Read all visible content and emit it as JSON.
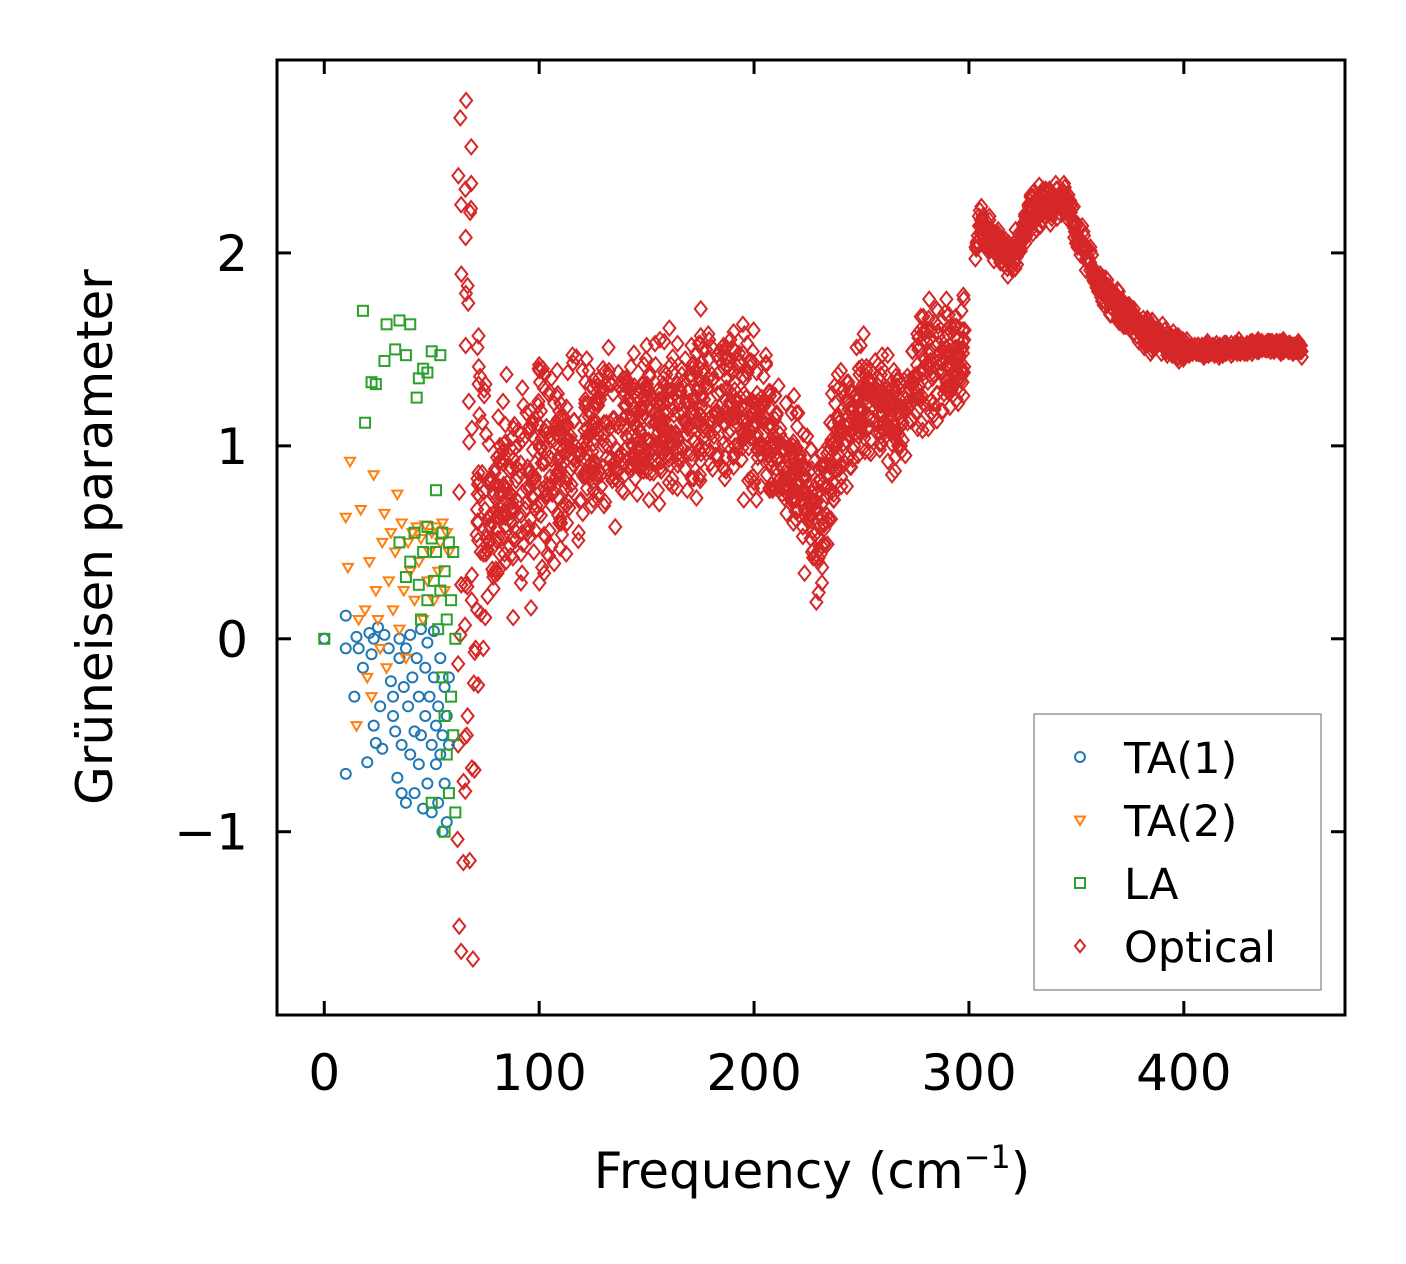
{
  "chart_data": {
    "type": "scatter",
    "title": "",
    "xlabel": "Frequency (cm",
    "xlabel_sup": "−1",
    "xlabel_end": ")",
    "ylabel": "Grüneisen parameter",
    "xlim": [
      -22,
      475
    ],
    "ylim": [
      -1.95,
      3.0
    ],
    "xticks": [
      0,
      100,
      200,
      300,
      400
    ],
    "xtick_labels": [
      "0",
      "100",
      "200",
      "300",
      "400"
    ],
    "yticks": [
      -1,
      0,
      1,
      2
    ],
    "ytick_labels": [
      "−1",
      "0",
      "1",
      "2"
    ],
    "legend_position": "lower-right",
    "series": [
      {
        "name": "TA(1)",
        "marker": "circle",
        "color": "#1f77b4",
        "points": [
          [
            0,
            0
          ],
          [
            10,
            0.12
          ],
          [
            10,
            -0.05
          ],
          [
            10,
            -0.7
          ],
          [
            14,
            -0.3
          ],
          [
            15,
            0.01
          ],
          [
            16,
            -0.05
          ],
          [
            18,
            -0.15
          ],
          [
            20,
            -0.64
          ],
          [
            21,
            0.03
          ],
          [
            22,
            -0.08
          ],
          [
            23,
            0
          ],
          [
            23,
            -0.45
          ],
          [
            24,
            -0.54
          ],
          [
            25,
            0.06
          ],
          [
            26,
            -0.35
          ],
          [
            27,
            -0.57
          ],
          [
            28,
            0.02
          ],
          [
            30,
            -0.05
          ],
          [
            31,
            -0.22
          ],
          [
            32,
            -0.3
          ],
          [
            32,
            -0.4
          ],
          [
            33,
            -0.48
          ],
          [
            34,
            -0.72
          ],
          [
            35,
            -0.1
          ],
          [
            35,
            0
          ],
          [
            36,
            -0.8
          ],
          [
            36,
            -0.55
          ],
          [
            37,
            -0.25
          ],
          [
            38,
            -0.05
          ],
          [
            38,
            -0.85
          ],
          [
            39,
            -0.35
          ],
          [
            40,
            0.02
          ],
          [
            40,
            -0.6
          ],
          [
            41,
            -0.2
          ],
          [
            42,
            -0.48
          ],
          [
            42,
            -0.8
          ],
          [
            43,
            -0.1
          ],
          [
            44,
            -0.3
          ],
          [
            44,
            -0.65
          ],
          [
            45,
            0.05
          ],
          [
            45,
            -0.5
          ],
          [
            46,
            -0.88
          ],
          [
            47,
            -0.15
          ],
          [
            47,
            -0.4
          ],
          [
            48,
            -0.02
          ],
          [
            48,
            -0.75
          ],
          [
            49,
            -0.3
          ],
          [
            50,
            -0.55
          ],
          [
            50,
            -0.9
          ],
          [
            51,
            -0.2
          ],
          [
            51,
            0.04
          ],
          [
            52,
            -0.45
          ],
          [
            52,
            -0.65
          ],
          [
            53,
            -0.35
          ],
          [
            53,
            -0.85
          ],
          [
            54,
            -0.1
          ],
          [
            54,
            -0.6
          ],
          [
            55,
            -0.5
          ],
          [
            55,
            -1.0
          ],
          [
            56,
            -0.25
          ],
          [
            56,
            -0.75
          ],
          [
            57,
            -0.4
          ],
          [
            57,
            -0.95
          ],
          [
            58,
            -0.2
          ],
          [
            58,
            -0.55
          ]
        ]
      },
      {
        "name": "TA(2)",
        "marker": "triangle-down",
        "color": "#ff7f0e",
        "points": [
          [
            10,
            0.63
          ],
          [
            11,
            0.37
          ],
          [
            12,
            0.92
          ],
          [
            15,
            -0.45
          ],
          [
            16,
            0.1
          ],
          [
            17,
            0.67
          ],
          [
            19,
            0.15
          ],
          [
            20,
            -0.2
          ],
          [
            21,
            0.4
          ],
          [
            22,
            -0.3
          ],
          [
            23,
            0.85
          ],
          [
            24,
            0.25
          ],
          [
            25,
            0.1
          ],
          [
            26,
            -0.05
          ],
          [
            27,
            0.5
          ],
          [
            28,
            0.65
          ],
          [
            29,
            -0.15
          ],
          [
            30,
            0.3
          ],
          [
            31,
            0.55
          ],
          [
            32,
            0.15
          ],
          [
            33,
            0.45
          ],
          [
            34,
            0.75
          ],
          [
            35,
            0.05
          ],
          [
            36,
            0.6
          ],
          [
            37,
            0.25
          ],
          [
            38,
            -0.1
          ],
          [
            39,
            0.5
          ],
          [
            40,
            0.35
          ],
          [
            41,
            0.55
          ],
          [
            42,
            0.2
          ],
          [
            43,
            0.58
          ],
          [
            44,
            0.4
          ],
          [
            45,
            0.52
          ],
          [
            46,
            0.1
          ],
          [
            47,
            0.59
          ],
          [
            48,
            0.3
          ],
          [
            49,
            0.45
          ],
          [
            50,
            0.55
          ],
          [
            51,
            0.2
          ],
          [
            52,
            0.58
          ],
          [
            53,
            0.35
          ],
          [
            54,
            0.5
          ],
          [
            55,
            0.6
          ],
          [
            56,
            0.25
          ],
          [
            57,
            0.55
          ],
          [
            58,
            0.45
          ]
        ]
      },
      {
        "name": "LA",
        "marker": "square",
        "color": "#2ca02c",
        "points": [
          [
            0,
            0
          ],
          [
            18,
            1.7
          ],
          [
            19,
            1.12
          ],
          [
            22,
            1.33
          ],
          [
            24,
            1.32
          ],
          [
            28,
            1.44
          ],
          [
            29,
            1.63
          ],
          [
            33,
            1.5
          ],
          [
            35,
            1.65
          ],
          [
            38,
            1.47
          ],
          [
            40,
            1.63
          ],
          [
            43,
            1.25
          ],
          [
            44,
            1.35
          ],
          [
            46,
            1.4
          ],
          [
            48,
            1.38
          ],
          [
            50,
            1.49
          ],
          [
            52,
            0.77
          ],
          [
            54,
            1.47
          ],
          [
            35,
            0.5
          ],
          [
            38,
            0.32
          ],
          [
            40,
            0.4
          ],
          [
            42,
            0.55
          ],
          [
            44,
            0.28
          ],
          [
            46,
            0.45
          ],
          [
            48,
            0.58
          ],
          [
            50,
            0.52
          ],
          [
            51,
            0.3
          ],
          [
            52,
            0.45
          ],
          [
            53,
            0.05
          ],
          [
            54,
            0.25
          ],
          [
            55,
            -0.2
          ],
          [
            55,
            0.55
          ],
          [
            56,
            -0.4
          ],
          [
            56,
            0.35
          ],
          [
            57,
            -0.6
          ],
          [
            57,
            0.1
          ],
          [
            58,
            -0.8
          ],
          [
            58,
            0.5
          ],
          [
            59,
            -0.3
          ],
          [
            59,
            0.2
          ],
          [
            60,
            -0.5
          ],
          [
            60,
            0.45
          ],
          [
            61,
            0
          ],
          [
            61,
            -0.9
          ],
          [
            56,
            -1.0
          ],
          [
            50,
            -0.85
          ],
          [
            48,
            0.2
          ],
          [
            45,
            0.1
          ]
        ]
      },
      {
        "name": "Optical",
        "marker": "diamond",
        "color": "#d62728",
        "points": []
      }
    ]
  }
}
